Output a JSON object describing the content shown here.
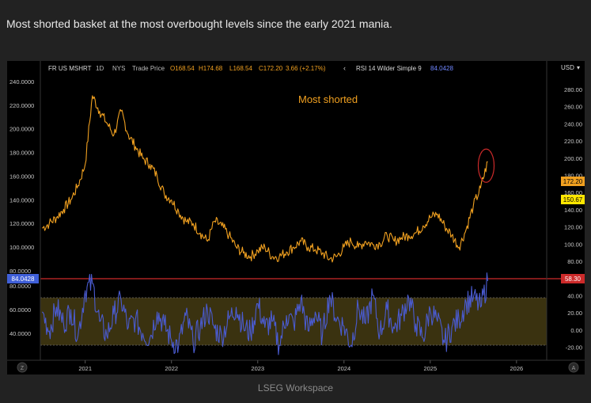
{
  "caption": "Most shorted basket at the most overbought levels since the early 2021 mania.",
  "footer": "LSEG Workspace",
  "colors": {
    "price": "#f0a020",
    "rsi": "#4a5bd0",
    "rsi_upper_line": "#cc2a2a",
    "rsi_band": "#3a3210",
    "annotation": "#f0a020",
    "circle": "#cc2a2a",
    "label_last": "#f0a020",
    "label_open": "#ffe600",
    "label_rsi": "#3f5fd8"
  },
  "header": {
    "symbol": "FR US MSHRT",
    "interval": "1D",
    "exchange": "NYS",
    "price_type": "Trade Price",
    "open": "O168.54",
    "high": "H174.68",
    "low": "L168.54",
    "close": "C172.20",
    "change": "3.66 (+2.17%)",
    "back_icon": "chevron-left-icon",
    "rsi_name": "RSI 14 Wilder Simple 9",
    "rsi_value": "84.0428",
    "currency": "USD"
  },
  "annotation": "Most shorted",
  "buttons": {
    "left": "Z",
    "right": "A"
  },
  "chart_data": {
    "type": "line",
    "title": "",
    "x": [
      "2020-07",
      "2020-08",
      "2020-09",
      "2020-10",
      "2020-11",
      "2020-12",
      "2021-01",
      "2021-02",
      "2021-03",
      "2021-04",
      "2021-05",
      "2021-06",
      "2021-07",
      "2021-08",
      "2021-09",
      "2021-10",
      "2021-11",
      "2021-12",
      "2022-01",
      "2022-02",
      "2022-03",
      "2022-04",
      "2022-05",
      "2022-06",
      "2022-07",
      "2022-08",
      "2022-09",
      "2022-10",
      "2022-11",
      "2022-12",
      "2023-01",
      "2023-02",
      "2023-03",
      "2023-04",
      "2023-05",
      "2023-06",
      "2023-07",
      "2023-08",
      "2023-09",
      "2023-10",
      "2023-11",
      "2023-12",
      "2024-01",
      "2024-02",
      "2024-03",
      "2024-04",
      "2024-05",
      "2024-06",
      "2024-07",
      "2024-08",
      "2024-09",
      "2024-10",
      "2024-11",
      "2024-12",
      "2025-01",
      "2025-02",
      "2025-03",
      "2025-04",
      "2025-05",
      "2025-06",
      "2025-07",
      "2025-08",
      "2025-09"
    ],
    "series": [
      {
        "values": [
          116,
          120,
          125,
          132,
          140,
          152,
          170,
          228,
          215,
          205,
          195,
          215,
          195,
          185,
          175,
          170,
          160,
          145,
          140,
          130,
          122,
          120,
          112,
          105,
          122,
          118,
          110,
          100,
          95,
          92,
          97,
          100,
          92,
          92,
          96,
          100,
          105,
          100,
          98,
          95,
          90,
          92,
          100,
          105,
          100,
          105,
          102,
          103,
          110,
          105,
          108,
          110,
          112,
          118,
          125,
          128,
          118,
          110,
          100,
          115,
          135,
          150,
          172.2
        ]
      },
      {
        "name": "RSI 14 Wilder Simple 9",
        "values": [
          58,
          42,
          62,
          48,
          60,
          38,
          76,
          82,
          50,
          38,
          56,
          68,
          45,
          52,
          40,
          36,
          58,
          47,
          34,
          30,
          55,
          33,
          45,
          60,
          44,
          38,
          52,
          62,
          46,
          40,
          65,
          45,
          50,
          30,
          55,
          48,
          68,
          42,
          58,
          38,
          72,
          52,
          46,
          30,
          62,
          48,
          72,
          40,
          60,
          44,
          55,
          70,
          48,
          36,
          60,
          50,
          32,
          45,
          52,
          66,
          70,
          62,
          84.04
        ]
      }
    ],
    "price_axis": {
      "ticks": [
        "240.0000",
        "220.0000",
        "200.0000",
        "180.0000",
        "160.0000",
        "140.0000",
        "120.0000",
        "100.0000",
        "80.0000"
      ],
      "ylim": [
        80,
        244
      ]
    },
    "rsi_axis": {
      "ticks": [
        "80.0000",
        "60.0000",
        "40.0000"
      ],
      "ylim": [
        20,
        88
      ],
      "bands": [
        30,
        70
      ]
    },
    "right_axis": {
      "ticks": [
        "280.00",
        "260.00",
        "240.00",
        "220.00",
        "200.00",
        "180.00",
        "160.00",
        "140.00",
        "120.00",
        "100.00",
        "80.00",
        "60.00",
        "40.00",
        "20.00",
        "0.00",
        "-20.00"
      ]
    },
    "x_ticks": [
      "2021",
      "2022",
      "2023",
      "2024",
      "2025",
      "2026"
    ],
    "last_price_label": "172.20",
    "open_label": "150.67",
    "rsi_label": "84.0428",
    "rsi_signal_label": "58.30",
    "grid": false,
    "legend": "top-left"
  }
}
